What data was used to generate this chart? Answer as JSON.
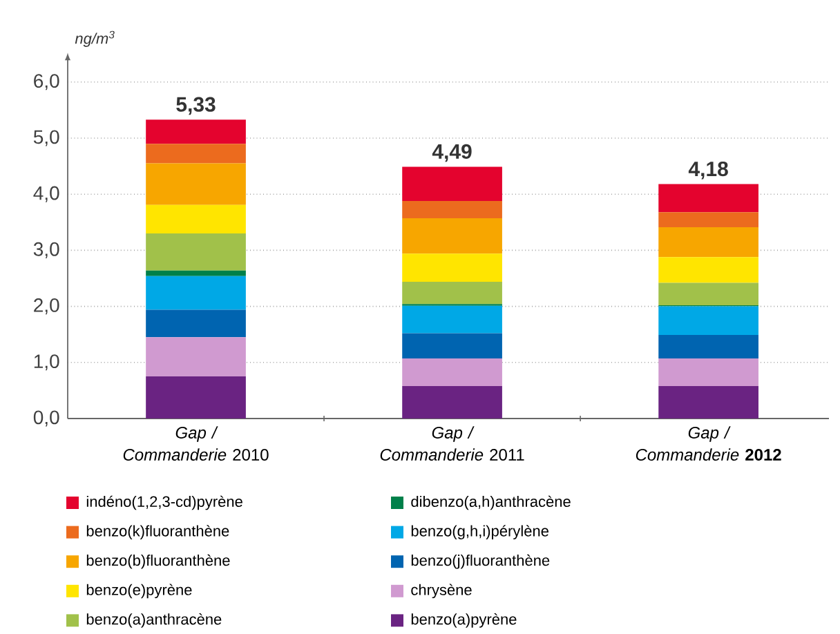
{
  "chart_data": {
    "type": "bar",
    "stacked": true,
    "ylabel": "ng/m$^{3}$",
    "categories": [
      "*Gap / Commanderie* 2010",
      "*Gap / Commanderie* 2011",
      "*Gap / Commanderie* **2012**"
    ],
    "series": [
      {
        "name": "benzo(a)pyrène",
        "color": "#6a2382",
        "values": [
          0.75,
          0.58,
          0.58
        ]
      },
      {
        "name": "chrysène",
        "color": "#d09ad0",
        "values": [
          0.7,
          0.49,
          0.49
        ]
      },
      {
        "name": "benzo(j)fluoranthène",
        "color": "#0064b0",
        "values": [
          0.49,
          0.45,
          0.42
        ]
      },
      {
        "name": "benzo(g,h,i)pérylène",
        "color": "#00a8e6",
        "values": [
          0.6,
          0.49,
          0.51
        ]
      },
      {
        "name": "dibenzo(a,h)anthracène",
        "color": "#00804a",
        "values": [
          0.1,
          0.03,
          0.02
        ]
      },
      {
        "name": "benzo(a)anthracène",
        "color": "#a1c14a",
        "values": [
          0.66,
          0.4,
          0.4
        ]
      },
      {
        "name": "benzo(e)pyrène",
        "color": "#ffe500",
        "values": [
          0.51,
          0.5,
          0.46
        ]
      },
      {
        "name": "benzo(b)fluoranthène",
        "color": "#f7a600",
        "values": [
          0.74,
          0.63,
          0.53
        ]
      },
      {
        "name": "benzo(k)fluoranthène",
        "color": "#ec6b1e",
        "values": [
          0.35,
          0.31,
          0.27
        ]
      },
      {
        "name": "indéno(1,2,3-cd)pyrène",
        "color": "#e4032e",
        "values": [
          0.43,
          0.61,
          0.5
        ]
      }
    ],
    "totals": [
      "5,33",
      "4,49",
      "4,18"
    ],
    "ylim": [
      0,
      6.4
    ],
    "yticks": [
      {
        "value": 0,
        "label": "0,0"
      },
      {
        "value": 1,
        "label": "1,0"
      },
      {
        "value": 2,
        "label": "2,0"
      },
      {
        "value": 3,
        "label": "3,0"
      },
      {
        "value": 4,
        "label": "4,0"
      },
      {
        "value": 5,
        "label": "5,0"
      },
      {
        "value": 6,
        "label": "6,0"
      }
    ],
    "grid": "y",
    "legend": "bottom"
  }
}
